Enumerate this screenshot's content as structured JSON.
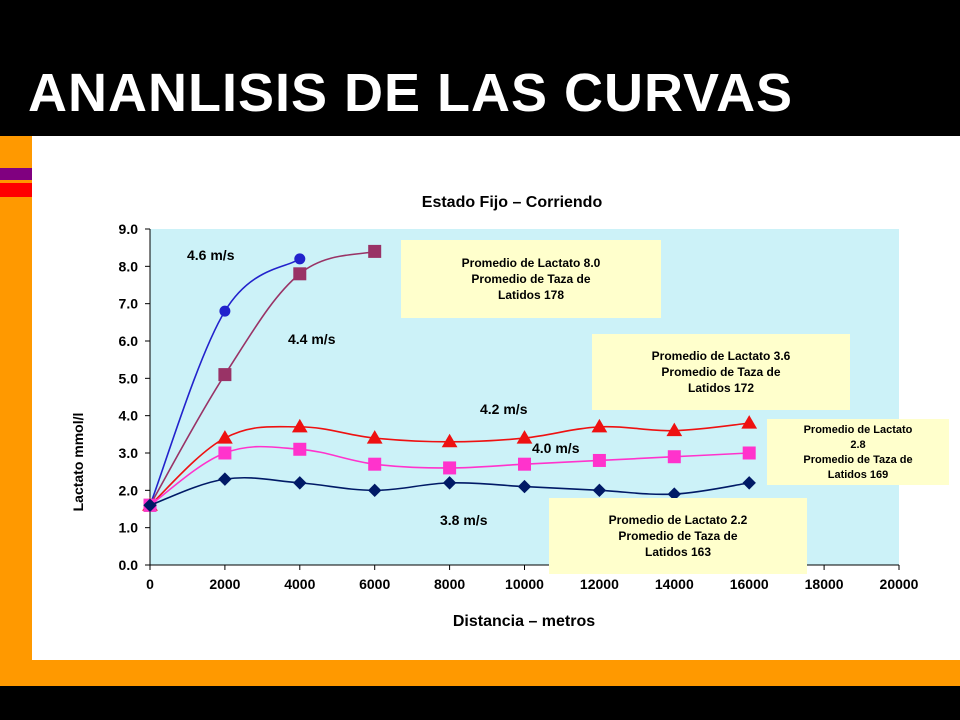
{
  "slide": {
    "title": "ANANLISIS DE LAS CURVAS"
  },
  "colors": {
    "background": "#000000",
    "accent_orange": "#ff9900",
    "plot_bg": "#ccf2f8",
    "box_fill": "#ffffcc"
  },
  "chart_data": {
    "type": "line",
    "title": "Estado Fijo – Corriendo",
    "xlabel": "Distancia – metros",
    "ylabel": "Lactato mmol/l",
    "xlim": [
      0,
      20000
    ],
    "ylim": [
      0,
      9
    ],
    "x_ticks": [
      "0",
      "2000",
      "4000",
      "6000",
      "8000",
      "10000",
      "12000",
      "14000",
      "16000",
      "18000",
      "20000"
    ],
    "y_ticks": [
      "0.0",
      "1.0",
      "2.0",
      "3.0",
      "4.0",
      "5.0",
      "6.0",
      "7.0",
      "8.0",
      "9.0"
    ],
    "grid": false,
    "series": [
      {
        "name": "4.6 m/s",
        "color": "#2222cc",
        "marker": "circle",
        "points": [
          [
            0,
            1.6
          ],
          [
            2000,
            6.8
          ],
          [
            4000,
            8.2
          ]
        ]
      },
      {
        "name": "4.4 m/s",
        "color": "#993366",
        "marker": "square",
        "points": [
          [
            0,
            1.6
          ],
          [
            2000,
            5.1
          ],
          [
            4000,
            7.8
          ],
          [
            6000,
            8.4
          ]
        ]
      },
      {
        "name": "4.2 m/s",
        "color": "#ee1111",
        "marker": "triangle",
        "points": [
          [
            0,
            1.6
          ],
          [
            2000,
            3.4
          ],
          [
            4000,
            3.7
          ],
          [
            6000,
            3.4
          ],
          [
            8000,
            3.3
          ],
          [
            10000,
            3.4
          ],
          [
            12000,
            3.7
          ],
          [
            14000,
            3.6
          ],
          [
            16000,
            3.8
          ]
        ]
      },
      {
        "name": "4.0 m/s",
        "color": "#ff33cc",
        "marker": "square",
        "points": [
          [
            0,
            1.6
          ],
          [
            2000,
            3.0
          ],
          [
            4000,
            3.1
          ],
          [
            6000,
            2.7
          ],
          [
            8000,
            2.6
          ],
          [
            10000,
            2.7
          ],
          [
            12000,
            2.8
          ],
          [
            14000,
            2.9
          ],
          [
            16000,
            3.0
          ]
        ]
      },
      {
        "name": "3.8 m/s",
        "color": "#001a66",
        "marker": "diamond",
        "points": [
          [
            0,
            1.6
          ],
          [
            2000,
            2.3
          ],
          [
            4000,
            2.2
          ],
          [
            6000,
            2.0
          ],
          [
            8000,
            2.2
          ],
          [
            10000,
            2.1
          ],
          [
            12000,
            2.0
          ],
          [
            14000,
            1.9
          ],
          [
            16000,
            2.2
          ]
        ]
      }
    ],
    "annotations": [
      {
        "text": "4.6 m/s"
      },
      {
        "text": "4.4 m/s"
      },
      {
        "text": "4.2 m/s"
      },
      {
        "text": "4.0 m/s"
      },
      {
        "text": "3.8 m/s"
      }
    ],
    "info_boxes": [
      {
        "lines": [
          "Promedio de  Lactato 8.0",
          "Promedio de Taza de",
          "Latidos  178"
        ]
      },
      {
        "lines": [
          "Promedio de  Lactato 3.6",
          "Promedio de Taza de",
          "Latidos  172"
        ]
      },
      {
        "lines": [
          "Promedio de Lactato",
          "2.8",
          "Promedio de Taza de",
          "Latidos  169"
        ]
      },
      {
        "lines": [
          "Promedio de  Lactato 2.2",
          "Promedio de Taza de",
          "Latidos  163"
        ]
      }
    ]
  }
}
